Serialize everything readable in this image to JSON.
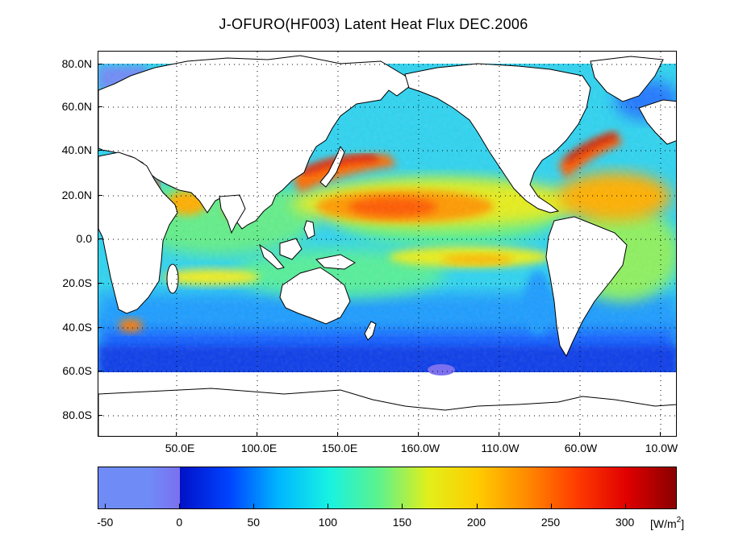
{
  "title": "J-OFURO(HF003) Latent Heat Flux DEC.2006",
  "colors": {
    "gradient": [
      "#6f8cf6",
      "#6f8cf6",
      "#7b70ef",
      "#0011c8",
      "#0044ff",
      "#00b7ff",
      "#17f2e2",
      "#5cf28d",
      "#e2ef1a",
      "#ffcc00",
      "#ff8a00",
      "#ff3c00",
      "#e00000",
      "#8a0000"
    ],
    "land": "#ffffff",
    "coast": "#000000"
  },
  "map": {
    "y_axis_labels": [
      "80.0N",
      "60.0N",
      "40.0N",
      "20.0N",
      "0.0",
      "20.0S",
      "40.0S",
      "60.0S",
      "80.0S"
    ],
    "x_axis_labels": [
      "50.0E",
      "100.0E",
      "150.0E",
      "160.0W",
      "110.0W",
      "60.0W",
      "10.0W"
    ]
  },
  "colorbar": {
    "tick_labels": [
      "-50",
      "0",
      "50",
      "100",
      "150",
      "200",
      "250",
      "300"
    ],
    "tick_values": [
      -50,
      0,
      50,
      100,
      150,
      200,
      250,
      300
    ],
    "range": [
      -55,
      335
    ],
    "unit_prefix": "[W/m",
    "unit_sup": "2",
    "unit_suffix": "]"
  }
}
